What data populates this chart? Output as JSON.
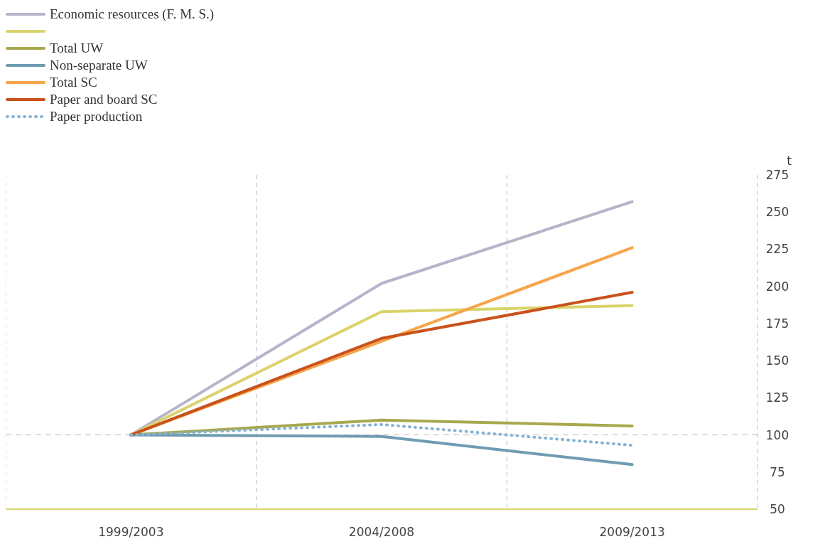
{
  "chart_data": {
    "type": "line",
    "ylabel": "t",
    "categories": [
      "1999/2003",
      "2004/2008",
      "2009/2013"
    ],
    "series": [
      {
        "name": "Economic resources (F. M. S.)",
        "color": "#b9b3c9",
        "values": [
          100,
          202,
          257
        ]
      },
      {
        "color": "#d9d46a",
        "values": [
          100,
          183,
          187
        ]
      },
      {
        "name": "Total UW",
        "color": "#a8a84e",
        "values": [
          100,
          110,
          106
        ]
      },
      {
        "name": "Non-separate UW",
        "color": "#6f9cb3",
        "values": [
          100,
          99,
          80
        ]
      },
      {
        "name": "Total SC",
        "color": "#f6a54a",
        "values": [
          100,
          163,
          226
        ]
      },
      {
        "name": "Paper and board SC",
        "color": "#c9521c",
        "values": [
          100,
          165,
          196
        ]
      },
      {
        "name": "Paper production",
        "color": "#86b3d3",
        "values": [
          100,
          107,
          93
        ],
        "line_style": "dotted"
      }
    ],
    "ylim": [
      50,
      275
    ],
    "yticks": [
      50,
      75,
      100,
      125,
      150,
      175,
      200,
      225,
      250,
      275
    ],
    "grid": "x",
    "legend": "top left",
    "marker": "none",
    "ref_lines": [
      {
        "axis": "y",
        "value": 100,
        "color": "#bbbbbb",
        "line_style": "dashed"
      }
    ]
  }
}
